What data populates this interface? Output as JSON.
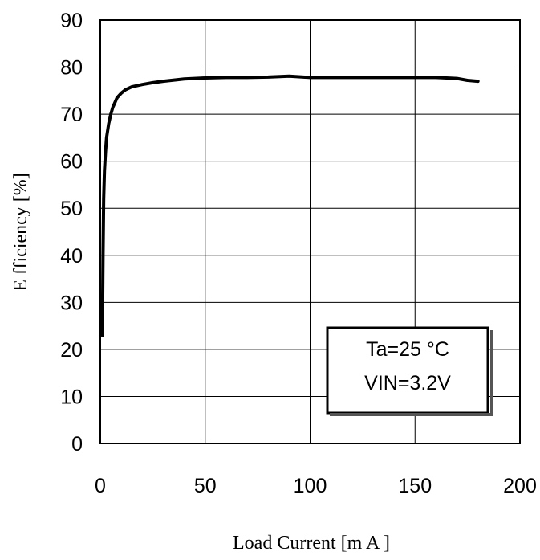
{
  "chart_data": {
    "type": "line",
    "title": "",
    "xlabel": "Load Current [m A ]",
    "ylabel": "E fficiency [%]",
    "xlim": [
      0,
      200
    ],
    "ylim": [
      0,
      90
    ],
    "x_ticks": [
      "0",
      "50",
      "100",
      "150",
      "200"
    ],
    "y_ticks": [
      "0",
      "10",
      "20",
      "30",
      "40",
      "50",
      "60",
      "70",
      "80",
      "90"
    ],
    "grid": true,
    "series": [
      {
        "x": [
          1,
          1.3,
          1.6,
          2,
          2.5,
          3,
          4,
          5,
          6,
          7,
          8,
          10,
          12,
          15,
          20,
          25,
          30,
          40,
          50,
          60,
          70,
          80,
          90,
          100,
          110,
          120,
          130,
          140,
          150,
          160,
          170,
          175,
          180
        ],
        "y": [
          23,
          40,
          52,
          58,
          62,
          65,
          68,
          70,
          71.5,
          72.5,
          73.5,
          74.5,
          75.2,
          75.8,
          76.3,
          76.7,
          77,
          77.5,
          77.7,
          77.8,
          77.8,
          77.9,
          78.1,
          77.8,
          77.8,
          77.8,
          77.8,
          77.8,
          77.8,
          77.8,
          77.6,
          77.2,
          77
        ]
      }
    ],
    "annotation": {
      "lines": [
        "Ta=25 °C",
        "VIN=3.2V"
      ]
    }
  }
}
